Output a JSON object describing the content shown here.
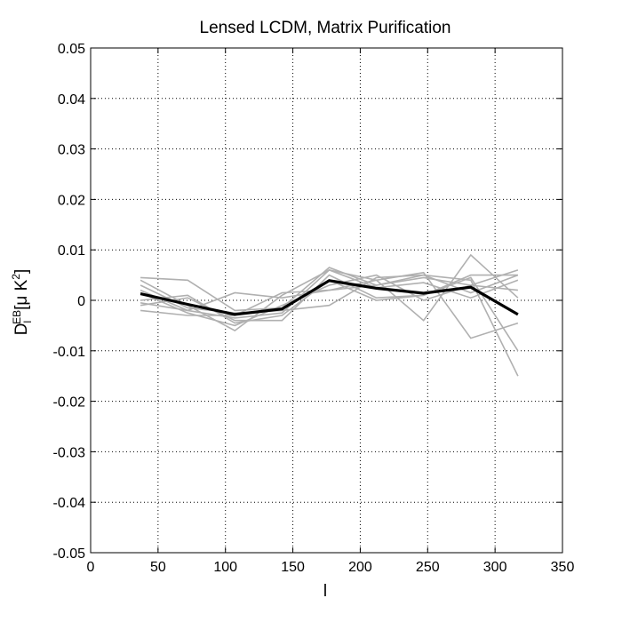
{
  "chart_data": {
    "type": "line",
    "title": "Lensed LCDM, Matrix Purification",
    "xlabel": "l",
    "ylabel": {
      "base": "D",
      "subscript": "l",
      "superscript": "EB",
      "units_prefix": "[μ K",
      "units_power": "2",
      "units_suffix": "]"
    },
    "xlim": [
      0,
      350
    ],
    "ylim": [
      -0.05,
      0.05
    ],
    "grid": true,
    "x_ticks": [
      0,
      50,
      100,
      150,
      200,
      250,
      300,
      350
    ],
    "x_tick_labels": [
      "0",
      "50",
      "100",
      "150",
      "200",
      "250",
      "300",
      "350"
    ],
    "y_ticks": [
      -0.05,
      -0.04,
      -0.03,
      -0.02,
      -0.01,
      0,
      0.01,
      0.02,
      0.03,
      0.04,
      0.05
    ],
    "y_tick_labels": [
      "-0.05",
      "-0.04",
      "-0.03",
      "-0.02",
      "-0.01",
      "0",
      "0.01",
      "0.02",
      "0.03",
      "0.04",
      "0.05"
    ],
    "x": [
      37,
      72,
      107,
      142,
      177,
      212,
      247,
      282,
      317
    ],
    "series": [
      {
        "color": "#b0b0b0",
        "role": "realization",
        "values": [
          0.0045,
          0.004,
          -0.002,
          -0.0015,
          0.0065,
          0.003,
          0.005,
          0.004,
          -0.015
        ]
      },
      {
        "color": "#b0b0b0",
        "role": "realization",
        "values": [
          0.004,
          -0.001,
          -0.006,
          0.001,
          0.006,
          0.004,
          0.0055,
          -0.0075,
          -0.0045
        ]
      },
      {
        "color": "#b0b0b0",
        "role": "realization",
        "values": [
          0.002,
          -0.002,
          0.0015,
          0.0005,
          0.002,
          0.004,
          -0.004,
          0.009,
          0.0005
        ]
      },
      {
        "color": "#b0b0b0",
        "role": "realization",
        "values": [
          -0.001,
          0.0005,
          -0.004,
          -0.004,
          0.005,
          0.0005,
          0.001,
          0.005,
          0.005
        ]
      },
      {
        "color": "#b0b0b0",
        "role": "realization",
        "values": [
          0.0015,
          -0.0025,
          -0.005,
          -0.001,
          0.003,
          0.005,
          0.0,
          0.003,
          0.006
        ]
      },
      {
        "color": "#b0b0b0",
        "role": "realization",
        "values": [
          -0.002,
          -0.003,
          -0.003,
          0.0015,
          0.002,
          0.003,
          0.0045,
          0.003,
          0.002
        ]
      },
      {
        "color": "#b0b0b0",
        "role": "realization",
        "values": [
          0.0,
          0.001,
          -0.0045,
          -0.003,
          0.004,
          0.0,
          0.001,
          0.0045,
          -0.01
        ]
      },
      {
        "color": "#b0b0b0",
        "role": "realization",
        "values": [
          0.003,
          -0.0015,
          -0.0025,
          -0.002,
          -0.001,
          0.0045,
          0.005,
          0.0015,
          0.005
        ]
      },
      {
        "color": "#b0b0b0",
        "role": "realization",
        "values": [
          -0.0005,
          -0.002,
          -0.0035,
          -0.0025,
          0.006,
          0.0025,
          0.0035,
          0.0005,
          0.004
        ]
      },
      {
        "color": "#000000",
        "role": "mean",
        "values": [
          0.0013,
          -0.0008,
          -0.0028,
          -0.0017,
          0.0039,
          0.0024,
          0.0014,
          0.0026,
          -0.0028
        ]
      }
    ]
  }
}
